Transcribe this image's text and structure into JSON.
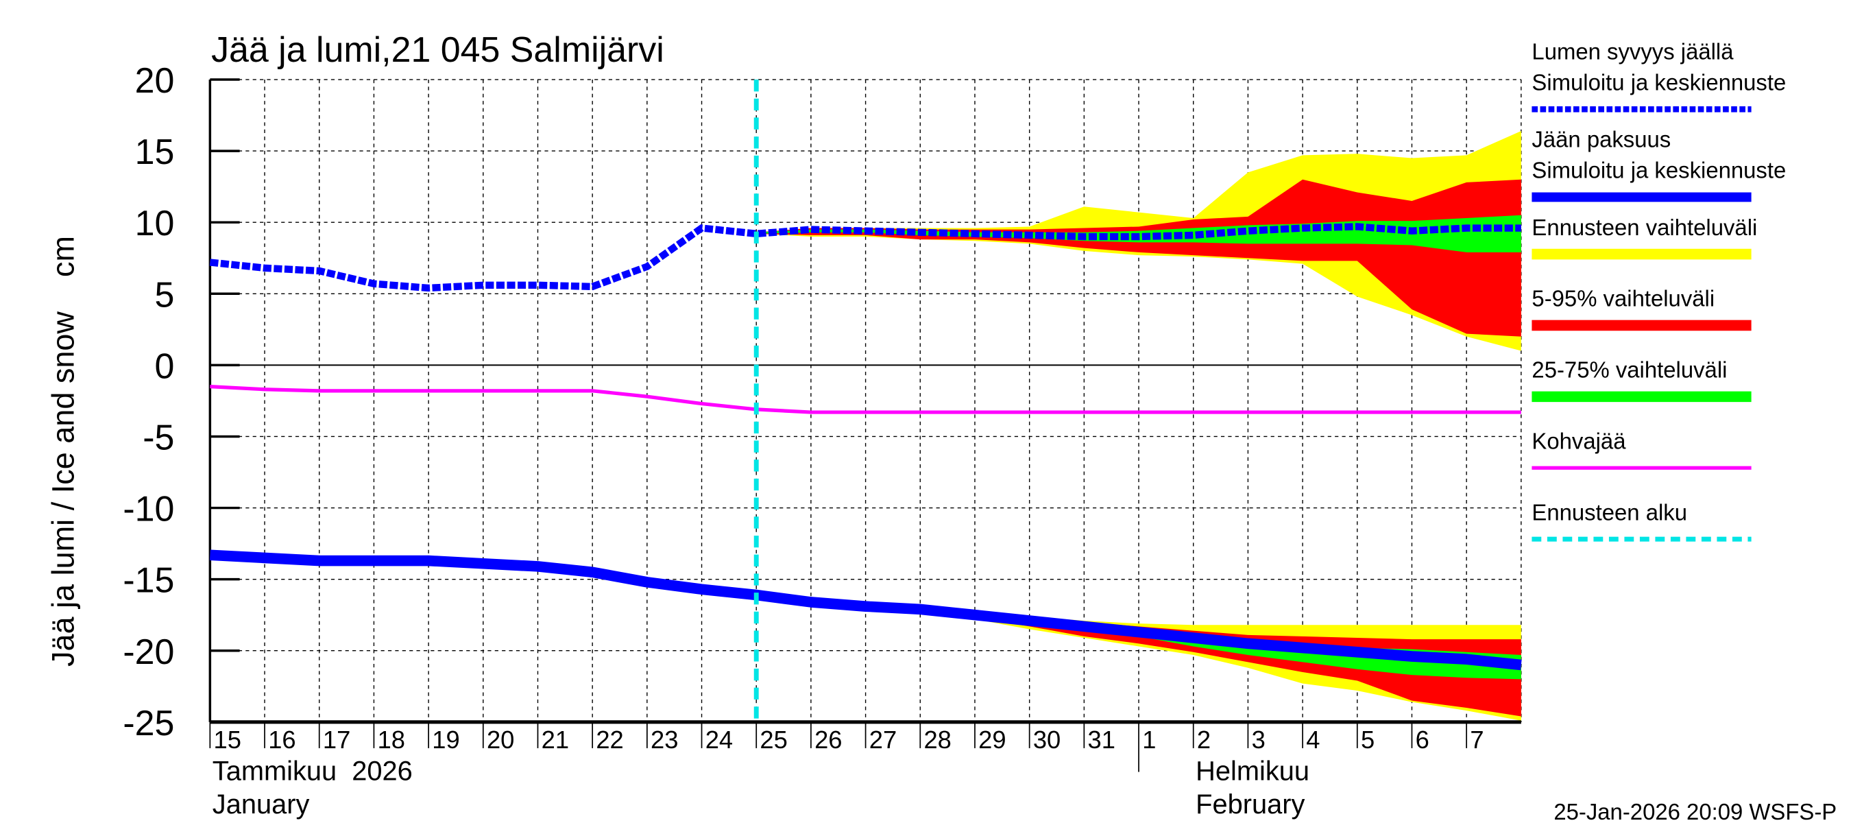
{
  "chart_data": {
    "type": "area",
    "title": "Jää ja lumi,21 045 Salmijärvi",
    "ylabel": "Jää ja lumi / Ice and snow    cm",
    "ylim": [
      -25,
      20
    ],
    "yticks": [
      "20",
      "15",
      "10",
      "5",
      "0",
      "-5",
      "-10",
      "-15",
      "-20",
      "-25"
    ],
    "ytick_values": [
      20,
      15,
      10,
      5,
      0,
      -5,
      -10,
      -15,
      -20,
      -25
    ],
    "x_start": "2026-01-15",
    "x_end": "2026-02-08",
    "xtick_labels": [
      "15",
      "16",
      "17",
      "18",
      "19",
      "20",
      "21",
      "22",
      "23",
      "24",
      "25",
      "26",
      "27",
      "28",
      "29",
      "30",
      "31",
      "1",
      "2",
      "3",
      "4",
      "5",
      "6",
      "7"
    ],
    "month_labels": [
      {
        "fi": "Tammikuu  2026",
        "en": "January"
      },
      {
        "fi": "Helmikuu",
        "en": "February"
      }
    ],
    "grid": true,
    "forecast_start": "2026-01-25",
    "dates": [
      "01-15",
      "01-16",
      "01-17",
      "01-18",
      "01-19",
      "01-20",
      "01-21",
      "01-22",
      "01-23",
      "01-24",
      "01-25",
      "01-26",
      "01-27",
      "01-28",
      "01-29",
      "01-30",
      "01-31",
      "02-01",
      "02-02",
      "02-03",
      "02-04",
      "02-05",
      "02-06",
      "02-07",
      "02-08"
    ],
    "series": [
      {
        "key": "snow",
        "values": [
          7.2,
          6.8,
          6.6,
          5.7,
          5.4,
          5.6,
          5.6,
          5.5,
          6.9,
          9.6,
          9.2,
          9.5,
          9.4,
          9.3,
          9.2,
          9.1,
          9.0,
          9.0,
          9.1,
          9.4,
          9.6,
          9.7,
          9.4,
          9.6,
          9.6
        ]
      },
      {
        "key": "ice",
        "values": [
          -13.3,
          -13.5,
          -13.7,
          -13.7,
          -13.7,
          -13.9,
          -14.1,
          -14.5,
          -15.2,
          -15.7,
          -16.1,
          -16.6,
          -16.9,
          -17.1,
          -17.5,
          -17.9,
          -18.3,
          -18.7,
          -19.1,
          -19.5,
          -19.8,
          -20.1,
          -20.4,
          -20.6,
          -21.0
        ]
      },
      {
        "key": "slush",
        "values": [
          -1.5,
          -1.7,
          -1.8,
          -1.8,
          -1.8,
          -1.8,
          -1.8,
          -1.8,
          -2.2,
          -2.7,
          -3.1,
          -3.3,
          -3.3,
          -3.3,
          -3.3,
          -3.3,
          -3.3,
          -3.3,
          -3.3,
          -3.3,
          -3.3,
          -3.3,
          -3.3,
          -3.3,
          -3.3
        ]
      }
    ],
    "bands_start_index": 10,
    "bands": {
      "snow": {
        "range": {
          "upper": [
            9.3,
            9.6,
            9.6,
            9.6,
            9.6,
            9.7,
            11.1,
            10.7,
            10.3,
            13.5,
            14.7,
            14.8,
            14.5,
            14.7,
            16.4
          ],
          "lower": [
            9.2,
            9.0,
            9.0,
            8.8,
            8.7,
            8.5,
            8.0,
            7.7,
            7.6,
            7.4,
            7.1,
            4.8,
            3.5,
            2.0,
            1.0
          ]
        },
        "p5_95": {
          "upper": [
            9.3,
            9.6,
            9.6,
            9.5,
            9.5,
            9.5,
            9.6,
            9.7,
            10.2,
            10.4,
            13.0,
            12.1,
            11.5,
            12.8,
            13.0
          ],
          "lower": [
            9.2,
            9.1,
            9.1,
            8.8,
            8.8,
            8.6,
            8.2,
            7.9,
            7.7,
            7.5,
            7.3,
            7.3,
            3.9,
            2.2,
            2.0
          ]
        },
        "p25_75": {
          "upper": [
            9.3,
            9.5,
            9.5,
            9.4,
            9.3,
            9.3,
            9.3,
            9.4,
            9.6,
            9.8,
            9.9,
            10.1,
            10.1,
            10.3,
            10.5
          ],
          "lower": [
            9.2,
            9.3,
            9.3,
            9.1,
            9.0,
            8.9,
            8.7,
            8.6,
            8.6,
            8.5,
            8.5,
            8.5,
            8.4,
            7.9,
            7.9
          ]
        }
      },
      "ice": {
        "range": {
          "upper": [
            -16.1,
            -16.6,
            -16.8,
            -17.0,
            -17.3,
            -17.6,
            -17.9,
            -18.1,
            -18.2,
            -18.2,
            -18.2,
            -18.2,
            -18.2,
            -18.2,
            -18.2
          ],
          "lower": [
            -16.1,
            -16.6,
            -17.0,
            -17.3,
            -17.8,
            -18.5,
            -19.1,
            -19.7,
            -20.3,
            -21.2,
            -22.3,
            -22.8,
            -23.6,
            -24.2,
            -24.9
          ]
        },
        "p5_95": {
          "upper": [
            -16.1,
            -16.6,
            -16.9,
            -17.1,
            -17.4,
            -17.8,
            -18.0,
            -18.3,
            -18.6,
            -18.9,
            -19.0,
            -19.1,
            -19.2,
            -19.2,
            -19.2
          ],
          "lower": [
            -16.1,
            -16.6,
            -16.9,
            -17.2,
            -17.7,
            -18.3,
            -19.0,
            -19.5,
            -20.1,
            -20.8,
            -21.5,
            -22.1,
            -23.5,
            -24.0,
            -24.6
          ]
        },
        "p25_75": {
          "upper": [
            -16.1,
            -16.6,
            -16.9,
            -17.1,
            -17.5,
            -17.9,
            -18.2,
            -18.6,
            -19.1,
            -19.4,
            -19.6,
            -19.8,
            -19.9,
            -20.1,
            -20.3
          ],
          "lower": [
            -16.1,
            -16.6,
            -16.9,
            -17.1,
            -17.6,
            -18.0,
            -18.5,
            -19.0,
            -19.7,
            -20.3,
            -20.8,
            -21.3,
            -21.7,
            -21.9,
            -22.0
          ]
        }
      }
    },
    "colors": {
      "snow": "#0000ff",
      "ice": "#0000ff",
      "slush": "#ff00ff",
      "range": "#ffff00",
      "p5_95": "#ff0000",
      "p25_75": "#00ff00",
      "forecast": "#00e5e5"
    },
    "legend": [
      {
        "key": "snow",
        "lines": [
          "Lumen syvyys jäällä",
          "Simuloitu ja keskiennuste"
        ],
        "style": "dashed-thick",
        "color": "#0000ff"
      },
      {
        "key": "ice",
        "lines": [
          "Jään paksuus",
          "Simuloitu ja keskiennuste"
        ],
        "style": "solid-thick",
        "color": "#0000ff"
      },
      {
        "key": "range",
        "lines": [
          "Ennusteen vaihteluväli"
        ],
        "style": "bar",
        "color": "#ffff00"
      },
      {
        "key": "p5_95",
        "lines": [
          "5-95% vaihteluväli"
        ],
        "style": "bar",
        "color": "#ff0000"
      },
      {
        "key": "p25_75",
        "lines": [
          "25-75% vaihteluväli"
        ],
        "style": "bar",
        "color": "#00ff00"
      },
      {
        "key": "slush",
        "lines": [
          "Kohvajää"
        ],
        "style": "solid",
        "color": "#ff00ff"
      },
      {
        "key": "forecast",
        "lines": [
          "Ennusteen alku"
        ],
        "style": "dashed",
        "color": "#00e5e5"
      }
    ],
    "legend_position": "right"
  },
  "footer": {
    "timestamp": "25-Jan-2026 20:09 WSFS-P"
  }
}
